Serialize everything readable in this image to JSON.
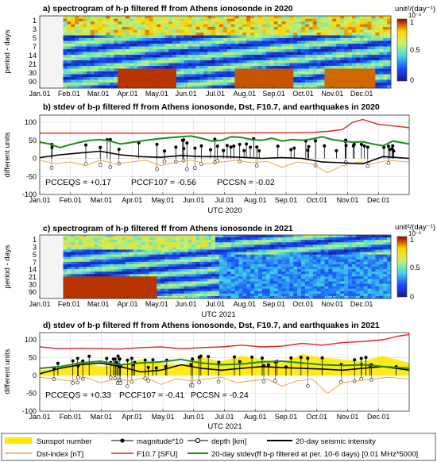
{
  "chart_data": [
    {
      "type": "heatmap",
      "title": "a) spectrogram of h-p filtered ff from Athens ionosonde in 2020",
      "xlabel": "",
      "ylabel": "period - days",
      "x_ticks": [
        "Jan.01",
        "Feb.01",
        "Mar.01",
        "Apr.01",
        "May.01",
        "Jun.01",
        "Jul.01",
        "Aug.01",
        "Sep.01",
        "Oct.01",
        "Nov.01",
        "Dec.01"
      ],
      "y_ticks": [
        "1",
        "3",
        "5",
        "7",
        "14",
        "21",
        "30",
        "90"
      ],
      "colorbar": {
        "unit": "unit²/(day⁻¹)",
        "scale": "10⁻³",
        "ticks": [
          "0",
          "0.5",
          "1"
        ],
        "range": [
          0,
          1
        ]
      }
    },
    {
      "type": "line",
      "title": "b) stdev of b-p filtered ff from Athens ionosonde, Dst, F10.7, and earthquakes in 2020",
      "xlabel": "UTC 2020",
      "ylabel": "different units",
      "ylim": [
        -100,
        120
      ],
      "y_ticks": [
        "100",
        "50",
        "0",
        "-50",
        "-100"
      ],
      "x_ticks": [
        "Jan.01",
        "Feb.01",
        "Mar.01",
        "Apr.01",
        "May.01",
        "Jun.01",
        "Jul.01",
        "Aug.01",
        "Sep.01",
        "Oct.01",
        "Nov.01",
        "Dec.01"
      ],
      "annotations": [
        "PCCEQS = +0.17",
        "PCCF107 = -0.56",
        "PCCSN = -0.02"
      ],
      "series": [
        {
          "name": "F10.7 [SFU]",
          "x": [
            0,
            30,
            60,
            90,
            120,
            150,
            180,
            210,
            240,
            270,
            285,
            300,
            310,
            320,
            335,
            350,
            366
          ],
          "values": [
            70,
            70,
            70,
            70,
            70,
            70,
            70,
            71,
            71,
            72,
            75,
            80,
            100,
            108,
            95,
            90,
            85
          ]
        },
        {
          "name": "20-day stdev(ff b-p filtered at per. 10-6 days) [0.01 MHz*5000]",
          "x": [
            0,
            10,
            20,
            30,
            40,
            50,
            60,
            70,
            80,
            100,
            110,
            120,
            130,
            140,
            150,
            160,
            170,
            180,
            190,
            200,
            210,
            220,
            230,
            240,
            250,
            260,
            270,
            280,
            290,
            300,
            310,
            320,
            330,
            340,
            350,
            366
          ],
          "values": [
            45,
            40,
            30,
            38,
            45,
            50,
            52,
            48,
            40,
            48,
            52,
            55,
            58,
            60,
            62,
            56,
            48,
            50,
            60,
            58,
            52,
            50,
            56,
            48,
            52,
            50,
            54,
            60,
            52,
            48,
            45,
            46,
            40,
            35,
            48,
            40
          ]
        },
        {
          "name": "20-day seismic intensity",
          "x": [
            0,
            20,
            40,
            60,
            80,
            100,
            120,
            140,
            160,
            180,
            200,
            220,
            240,
            260,
            280,
            300,
            320,
            340,
            366
          ],
          "values": [
            2,
            10,
            15,
            20,
            10,
            5,
            3,
            8,
            5,
            5,
            3,
            0,
            2,
            0,
            -10,
            -12,
            -15,
            5,
            0
          ]
        },
        {
          "name": "Dst-index [nT]",
          "x": [
            0,
            15,
            30,
            45,
            60,
            75,
            90,
            105,
            120,
            135,
            150,
            165,
            180,
            195,
            210,
            225,
            240,
            255,
            270,
            285,
            300,
            315,
            330,
            345,
            366
          ],
          "values": [
            -5,
            -15,
            -10,
            -20,
            -5,
            -15,
            -10,
            -5,
            -20,
            -10,
            -5,
            -15,
            -10,
            -5,
            -12,
            -8,
            -25,
            -10,
            -15,
            -40,
            -20,
            -10,
            -15,
            -5,
            -10
          ]
        }
      ]
    },
    {
      "type": "heatmap",
      "title": "c) spectrogram of h-p filtered ff from Athens ionosonde in 2021",
      "xlabel": "UTC 2021",
      "ylabel": "period - days",
      "x_ticks": [
        "Jan.01",
        "Feb.01",
        "Mar.01",
        "Apr.01",
        "May.01",
        "Jun.01",
        "Jul.01",
        "Aug.01",
        "Sep.01",
        "Oct.01",
        "Nov.01",
        "Dec.01"
      ],
      "y_ticks": [
        "1",
        "3",
        "5",
        "7",
        "14",
        "21",
        "30",
        "90"
      ],
      "colorbar": {
        "unit": "unit²/(day⁻¹)",
        "scale": "10⁻³",
        "ticks": [
          "0",
          "0.5",
          "1"
        ],
        "range": [
          0,
          1
        ]
      }
    },
    {
      "type": "line",
      "title": "d) stdev of b-p filtered ff from Athens ionosonde, Dst, F10.7, and earthquakes in 2021",
      "xlabel": "UTC 2021",
      "ylabel": "different units",
      "ylim": [
        -100,
        120
      ],
      "y_ticks": [
        "100",
        "50",
        "0",
        "-50",
        "-100"
      ],
      "x_ticks": [
        "Jan.01",
        "Feb.01",
        "Mar.01",
        "Apr.01",
        "May.01",
        "Jun.01",
        "Jul.01",
        "Aug.01",
        "Sep.01",
        "Oct.01",
        "Nov.01",
        "Dec.01"
      ],
      "annotations": [
        "PCCEQS = +0.33",
        "PCCF107 = -0.41",
        "PCCSN = -0.24"
      ],
      "series": [
        {
          "name": "F10.7 [SFU]",
          "x": [
            0,
            20,
            40,
            60,
            80,
            100,
            120,
            140,
            160,
            180,
            200,
            220,
            240,
            260,
            280,
            300,
            320,
            340,
            355,
            366
          ],
          "values": [
            80,
            75,
            76,
            75,
            74,
            78,
            80,
            75,
            78,
            80,
            85,
            80,
            82,
            90,
            85,
            92,
            95,
            100,
            110,
            115
          ]
        },
        {
          "name": "20-day stdev(ff b-p filtered at per. 10-6 days) [0.01 MHz*5000]",
          "x": [
            0,
            20,
            40,
            60,
            80,
            100,
            120,
            140,
            160,
            180,
            200,
            220,
            240,
            260,
            280,
            300,
            320,
            340,
            366
          ],
          "values": [
            20,
            25,
            35,
            40,
            30,
            35,
            38,
            45,
            35,
            30,
            32,
            38,
            40,
            35,
            30,
            28,
            30,
            25,
            20
          ]
        },
        {
          "name": "20-day seismic intensity",
          "x": [
            0,
            20,
            40,
            60,
            80,
            100,
            120,
            140,
            160,
            180,
            200,
            220,
            240,
            260,
            280,
            300,
            320,
            340,
            366
          ],
          "values": [
            5,
            20,
            30,
            35,
            25,
            10,
            15,
            30,
            20,
            15,
            20,
            25,
            22,
            20,
            18,
            15,
            20,
            25,
            15
          ]
        },
        {
          "name": "Dst-index [nT]",
          "x": [
            0,
            15,
            30,
            45,
            60,
            75,
            90,
            105,
            120,
            135,
            150,
            165,
            180,
            195,
            210,
            225,
            240,
            255,
            270,
            285,
            300,
            315,
            330,
            345,
            366
          ],
          "values": [
            -5,
            -10,
            -15,
            -5,
            -20,
            -10,
            -15,
            -5,
            -25,
            -10,
            -15,
            -10,
            -5,
            -20,
            -15,
            -10,
            -30,
            -15,
            -10,
            -50,
            -20,
            -15,
            -10,
            -5,
            -10
          ]
        },
        {
          "name": "Sunspot number",
          "x": [
            0,
            20,
            40,
            60,
            80,
            100,
            120,
            140,
            160,
            180,
            200,
            220,
            240,
            260,
            280,
            300,
            320,
            340,
            366
          ],
          "values": [
            15,
            20,
            40,
            25,
            30,
            45,
            35,
            30,
            50,
            40,
            55,
            45,
            35,
            60,
            50,
            45,
            40,
            55,
            35
          ]
        }
      ]
    }
  ],
  "legend": {
    "items": [
      {
        "label": "Sunspot number",
        "color": "#ffe800",
        "kind": "fill"
      },
      {
        "label": "magnitude*10",
        "color": "#000000",
        "kind": "stem-filled"
      },
      {
        "label": "depth [km]",
        "color": "#000000",
        "kind": "stem-open"
      },
      {
        "label": "20-day seismic intensity",
        "color": "#000000",
        "kind": "line"
      },
      {
        "label": "Dst-index [nT]",
        "color": "#f5a040",
        "kind": "line"
      },
      {
        "label": "F10.7 [SFU]",
        "color": "#e8201a",
        "kind": "line"
      },
      {
        "label": "20-day stdev(ff b-p filtered at per. 10-6 days) [0.01 MHz*5000]",
        "color": "#1e8c1e",
        "kind": "line"
      }
    ]
  },
  "colors": {
    "f107": "#e8201a",
    "stdev": "#1e8c1e",
    "dst": "#f5a040",
    "sunspot": "#ffe800",
    "seismic": "#000000"
  }
}
